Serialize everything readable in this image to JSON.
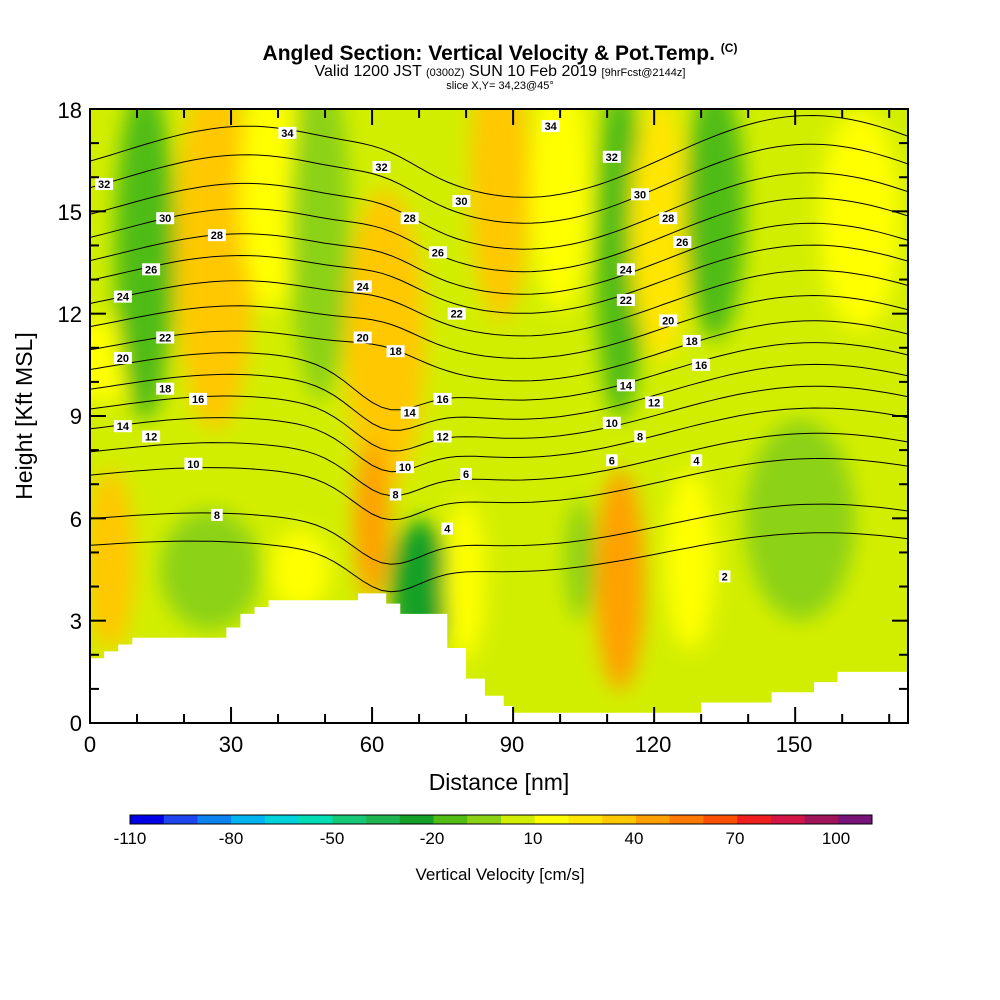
{
  "title": "Angled Section: Vertical Velocity & Pot.Temp.",
  "title_unit": "(C)",
  "subtitle_main": "Valid 1200 JST",
  "subtitle_z": "(0300Z)",
  "subtitle_date": "SUN 10 Feb 2019",
  "subtitle_fcst": "[9hrFcst@2144z]",
  "slice_label": "slice X,Y= 34,23@45°",
  "chart_data": {
    "type": "heatmap",
    "xlabel": "Distance [nm]",
    "ylabel": "Height [Kft MSL]",
    "xlim": [
      0,
      174
    ],
    "ylim": [
      0,
      18
    ],
    "x_ticks": [
      "0",
      "30",
      "60",
      "90",
      "120",
      "150"
    ],
    "y_ticks": [
      "0",
      "3",
      "6",
      "9",
      "12",
      "15",
      "18"
    ],
    "colorbar": {
      "title": "Vertical Velocity [cm/s]",
      "labels": [
        "-110",
        "-80",
        "-50",
        "-20",
        "10",
        "40",
        "70",
        "100"
      ],
      "levels": [
        -110,
        -100,
        -90,
        -80,
        -70,
        -60,
        -50,
        -40,
        -30,
        -20,
        -10,
        0,
        10,
        20,
        30,
        40,
        50,
        60,
        70,
        80,
        90,
        100,
        110
      ],
      "colors": [
        "#0000e6",
        "#1e46f0",
        "#0a82f0",
        "#00b4f0",
        "#00d2dc",
        "#00dcb4",
        "#14c878",
        "#1eb450",
        "#14a028",
        "#50bc14",
        "#8cd214",
        "#d2ee00",
        "#ffff00",
        "#ffe600",
        "#ffc800",
        "#ffa000",
        "#ff7800",
        "#ff5000",
        "#f01e1e",
        "#d21446",
        "#a0145a",
        "#781478"
      ]
    },
    "terrain_kft": [
      [
        0,
        1.9
      ],
      [
        3,
        2.1
      ],
      [
        6,
        2.3
      ],
      [
        9,
        2.5
      ],
      [
        20,
        2.5
      ],
      [
        29,
        2.8
      ],
      [
        32,
        3.2
      ],
      [
        35,
        3.4
      ],
      [
        38,
        3.6
      ],
      [
        54,
        3.6
      ],
      [
        57,
        3.8
      ],
      [
        60,
        3.8
      ],
      [
        63,
        3.5
      ],
      [
        66,
        3.2
      ],
      [
        72,
        3.2
      ],
      [
        76,
        2.2
      ],
      [
        80,
        1.3
      ],
      [
        84,
        0.8
      ],
      [
        88,
        0.5
      ],
      [
        90,
        0.3
      ],
      [
        125,
        0.3
      ],
      [
        130,
        0.6
      ],
      [
        142,
        0.6
      ],
      [
        145,
        0.9
      ],
      [
        154,
        1.2
      ],
      [
        159,
        1.5
      ],
      [
        174,
        1.5
      ]
    ],
    "vertical_velocity_features": [
      {
        "x": 13,
        "y": 14,
        "value": -20
      },
      {
        "x": 30,
        "y": 13,
        "value": 30
      },
      {
        "x": 60,
        "y": 6.5,
        "value": 40
      },
      {
        "x": 72,
        "y": 4.2,
        "value": -30
      },
      {
        "x": 80,
        "y": 14,
        "value": 10
      },
      {
        "x": 100,
        "y": 14,
        "value": 20
      },
      {
        "x": 114,
        "y": 4.3,
        "value": 40
      },
      {
        "x": 133,
        "y": 14,
        "value": -20
      },
      {
        "x": 155,
        "y": 5,
        "value": -10
      }
    ],
    "theta_contours": [
      {
        "label": "2",
        "y": 5.0
      },
      {
        "label": "4",
        "y": 5.8
      },
      {
        "label": "6",
        "y": 7.1
      },
      {
        "label": "8",
        "y": 7.8
      },
      {
        "label": "10",
        "y": 8.5
      },
      {
        "label": "12",
        "y": 9.1
      },
      {
        "label": "14",
        "y": 9.7
      },
      {
        "label": "16",
        "y": 10.3
      },
      {
        "label": "18",
        "y": 10.9
      },
      {
        "label": "20",
        "y": 11.6
      },
      {
        "label": "22",
        "y": 12.3
      },
      {
        "label": "24",
        "y": 13.0
      },
      {
        "label": "26",
        "y": 13.6
      },
      {
        "label": "28",
        "y": 14.3
      },
      {
        "label": "30",
        "y": 15.0
      },
      {
        "label": "32",
        "y": 15.8
      },
      {
        "label": "34",
        "y": 16.6
      }
    ],
    "contour_labels": [
      {
        "text": "32",
        "x": 3,
        "y": 15.8
      },
      {
        "text": "30",
        "x": 16,
        "y": 14.8
      },
      {
        "text": "28",
        "x": 27,
        "y": 14.3
      },
      {
        "text": "26",
        "x": 13,
        "y": 13.3
      },
      {
        "text": "24",
        "x": 7,
        "y": 12.5
      },
      {
        "text": "22",
        "x": 16,
        "y": 11.3
      },
      {
        "text": "20",
        "x": 7,
        "y": 10.7
      },
      {
        "text": "18",
        "x": 16,
        "y": 9.8
      },
      {
        "text": "16",
        "x": 23,
        "y": 9.5
      },
      {
        "text": "14",
        "x": 7,
        "y": 8.7
      },
      {
        "text": "12",
        "x": 13,
        "y": 8.4
      },
      {
        "text": "10",
        "x": 22,
        "y": 7.6
      },
      {
        "text": "8",
        "x": 27,
        "y": 6.1
      },
      {
        "text": "34",
        "x": 42,
        "y": 17.3
      },
      {
        "text": "32",
        "x": 62,
        "y": 16.3
      },
      {
        "text": "28",
        "x": 68,
        "y": 14.8
      },
      {
        "text": "26",
        "x": 74,
        "y": 13.8
      },
      {
        "text": "24",
        "x": 58,
        "y": 12.8
      },
      {
        "text": "22",
        "x": 78,
        "y": 12.0
      },
      {
        "text": "20",
        "x": 58,
        "y": 11.3
      },
      {
        "text": "18",
        "x": 65,
        "y": 10.9
      },
      {
        "text": "16",
        "x": 75,
        "y": 9.5
      },
      {
        "text": "14",
        "x": 68,
        "y": 9.1
      },
      {
        "text": "12",
        "x": 75,
        "y": 8.4
      },
      {
        "text": "10",
        "x": 67,
        "y": 7.5
      },
      {
        "text": "8",
        "x": 65,
        "y": 6.7
      },
      {
        "text": "6",
        "x": 80,
        "y": 7.3
      },
      {
        "text": "4",
        "x": 76,
        "y": 5.7
      },
      {
        "text": "30",
        "x": 79,
        "y": 15.3
      },
      {
        "text": "34",
        "x": 98,
        "y": 17.5
      },
      {
        "text": "32",
        "x": 111,
        "y": 16.6
      },
      {
        "text": "30",
        "x": 117,
        "y": 15.5
      },
      {
        "text": "28",
        "x": 123,
        "y": 14.8
      },
      {
        "text": "26",
        "x": 126,
        "y": 14.1
      },
      {
        "text": "24",
        "x": 114,
        "y": 13.3
      },
      {
        "text": "22",
        "x": 114,
        "y": 12.4
      },
      {
        "text": "20",
        "x": 123,
        "y": 11.8
      },
      {
        "text": "18",
        "x": 128,
        "y": 11.2
      },
      {
        "text": "16",
        "x": 130,
        "y": 10.5
      },
      {
        "text": "14",
        "x": 114,
        "y": 9.9
      },
      {
        "text": "12",
        "x": 120,
        "y": 9.4
      },
      {
        "text": "10",
        "x": 111,
        "y": 8.8
      },
      {
        "text": "8",
        "x": 117,
        "y": 8.4
      },
      {
        "text": "6",
        "x": 111,
        "y": 7.7
      },
      {
        "text": "4",
        "x": 129,
        "y": 7.7
      },
      {
        "text": "2",
        "x": 135,
        "y": 4.3
      }
    ]
  }
}
